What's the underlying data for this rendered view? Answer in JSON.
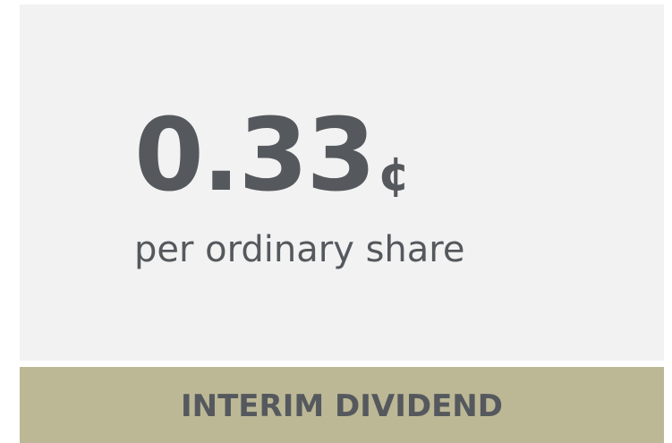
{
  "figure": {
    "value": "0.33",
    "unit": "¢",
    "caption": "per ordinary share"
  },
  "footer": {
    "label": "INTERIM DIVIDEND"
  }
}
